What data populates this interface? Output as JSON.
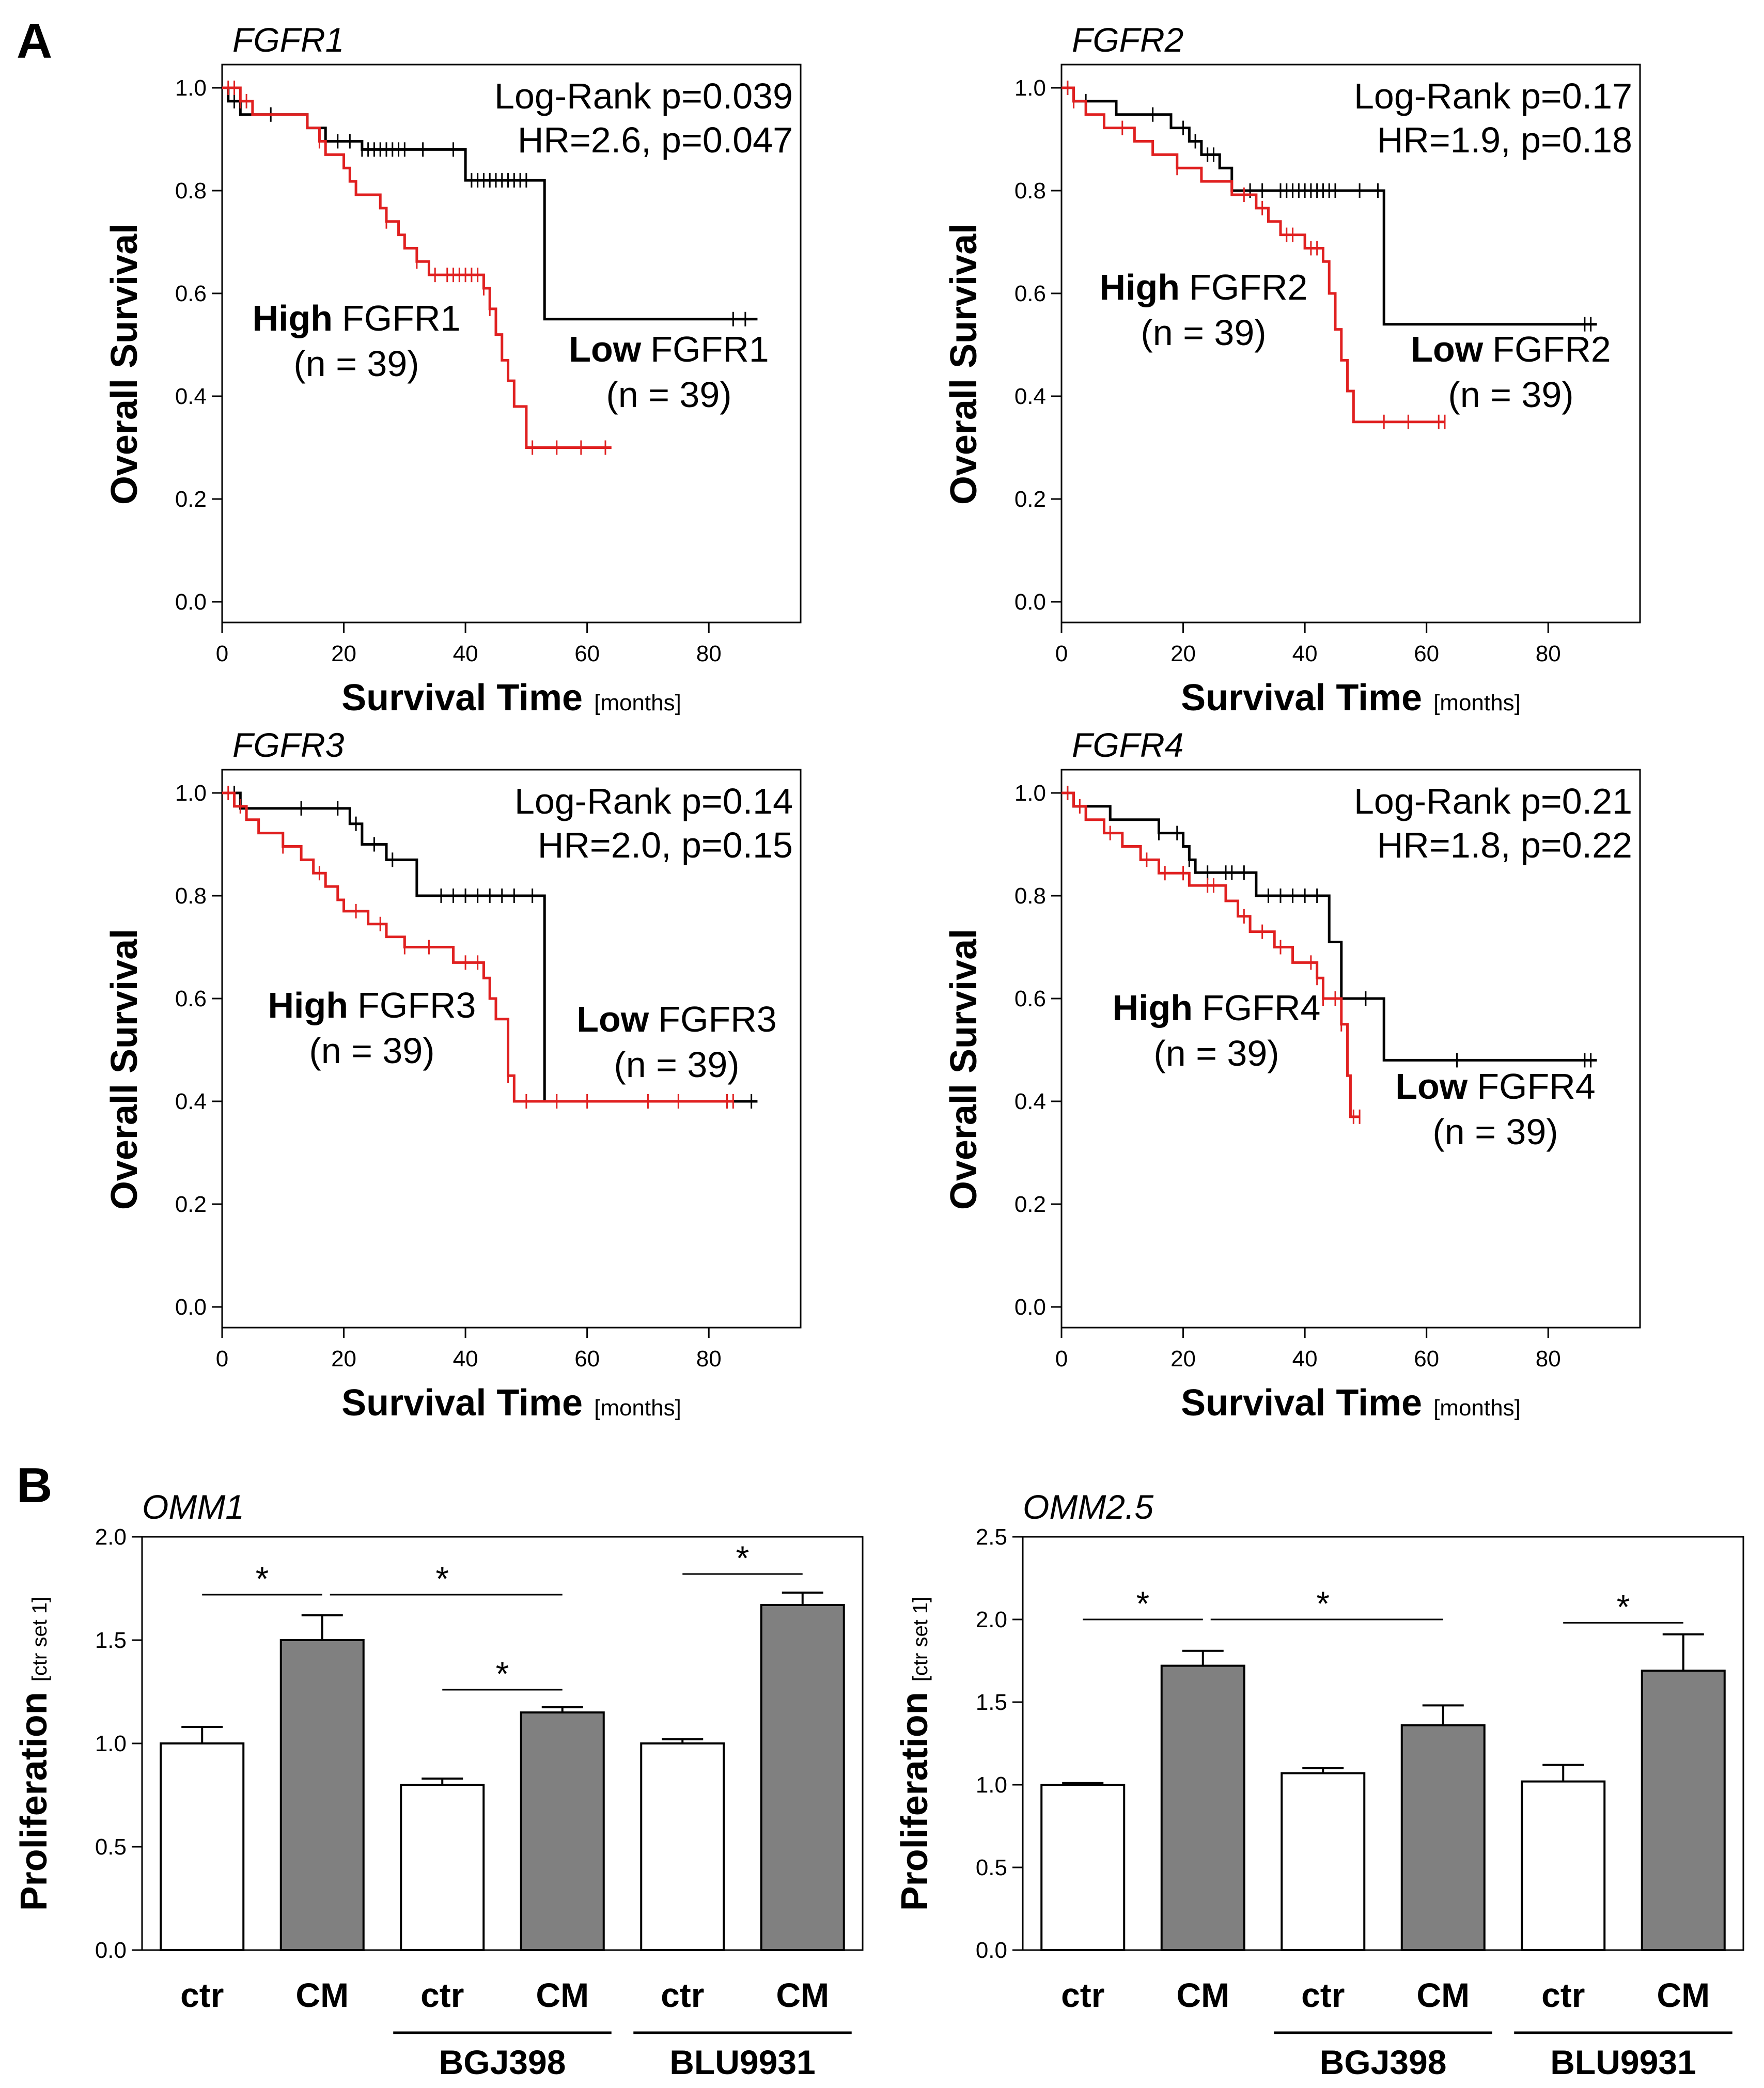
{
  "panel_labels": [
    "A",
    "B"
  ],
  "colors": {
    "high": "#e02020",
    "low": "#000000",
    "bar_ctr": "#ffffff",
    "bar_cm": "#808080"
  },
  "chart_data": [
    {
      "type": "line",
      "subtype": "kaplan-meier",
      "panel": "A",
      "title": "FGFR1",
      "xlabel": "Survival Time",
      "xunit": "[months]",
      "ylabel": "Overall Survival",
      "xlim": [
        0,
        90
      ],
      "ylim": [
        0,
        1.0
      ],
      "xticks": [
        "0",
        "20",
        "40",
        "60",
        "80"
      ],
      "yticks": [
        "0.0",
        "0.2",
        "0.4",
        "0.6",
        "0.8",
        "1.0"
      ],
      "annotations": [
        "Log-Rank p=0.039",
        "HR=2.6, p=0.047"
      ],
      "group_labels": {
        "high": {
          "bold": "High",
          "rest": "FGFR1",
          "n": "(n = 39)"
        },
        "low": {
          "bold": "Low",
          "rest": "FGFR1",
          "n": "(n = 39)"
        }
      },
      "series": [
        {
          "name": "High FGFR1",
          "color": "high",
          "steps": [
            [
              0,
              1.0
            ],
            [
              3,
              0.974
            ],
            [
              5,
              0.948
            ],
            [
              14,
              0.922
            ],
            [
              16,
              0.896
            ],
            [
              17,
              0.87
            ],
            [
              20,
              0.844
            ],
            [
              21,
              0.818
            ],
            [
              22,
              0.792
            ],
            [
              26,
              0.766
            ],
            [
              27,
              0.74
            ],
            [
              29,
              0.714
            ],
            [
              30,
              0.688
            ],
            [
              32,
              0.662
            ],
            [
              34,
              0.636
            ],
            [
              43,
              0.61
            ],
            [
              44,
              0.57
            ],
            [
              45,
              0.52
            ],
            [
              46,
              0.47
            ],
            [
              47,
              0.43
            ],
            [
              48,
              0.38
            ],
            [
              50,
              0.3
            ],
            [
              64,
              0.3
            ]
          ],
          "censors": [
            1,
            2,
            3,
            4,
            16,
            27,
            32,
            35,
            37,
            38,
            39,
            40,
            41,
            42,
            43,
            44,
            51,
            55,
            59,
            63
          ]
        },
        {
          "name": "Low FGFR1",
          "color": "low",
          "steps": [
            [
              0,
              1.0
            ],
            [
              1,
              0.974
            ],
            [
              3,
              0.948
            ],
            [
              14,
              0.922
            ],
            [
              17,
              0.896
            ],
            [
              23,
              0.88
            ],
            [
              40,
              0.82
            ],
            [
              53,
              0.55
            ],
            [
              88,
              0.55
            ]
          ],
          "censors": [
            2,
            8,
            19,
            21,
            23,
            24,
            25,
            26,
            27,
            28,
            29,
            30,
            33,
            38,
            41,
            42,
            43,
            44,
            45,
            46,
            47,
            48,
            49,
            50,
            84,
            86
          ]
        }
      ]
    },
    {
      "type": "line",
      "subtype": "kaplan-meier",
      "panel": "A",
      "title": "FGFR2",
      "xlabel": "Survival Time",
      "xunit": "[months]",
      "ylabel": "Overall Survival",
      "xlim": [
        0,
        90
      ],
      "ylim": [
        0,
        1.0
      ],
      "xticks": [
        "0",
        "20",
        "40",
        "60",
        "80"
      ],
      "yticks": [
        "0.0",
        "0.2",
        "0.4",
        "0.6",
        "0.8",
        "1.0"
      ],
      "annotations": [
        "Log-Rank p=0.17",
        "HR=1.9, p=0.18"
      ],
      "group_labels": {
        "high": {
          "bold": "High",
          "rest": "FGFR2",
          "n": "(n = 39)"
        },
        "low": {
          "bold": "Low",
          "rest": "FGFR2",
          "n": "(n = 39)"
        }
      },
      "series": [
        {
          "name": "High FGFR2",
          "color": "high",
          "steps": [
            [
              0,
              1.0
            ],
            [
              2,
              0.974
            ],
            [
              4,
              0.948
            ],
            [
              7,
              0.922
            ],
            [
              12,
              0.896
            ],
            [
              15,
              0.87
            ],
            [
              19,
              0.844
            ],
            [
              23,
              0.818
            ],
            [
              28,
              0.792
            ],
            [
              32,
              0.766
            ],
            [
              34,
              0.74
            ],
            [
              36,
              0.714
            ],
            [
              40,
              0.688
            ],
            [
              43,
              0.662
            ],
            [
              44,
              0.6
            ],
            [
              45,
              0.53
            ],
            [
              46,
              0.47
            ],
            [
              47,
              0.41
            ],
            [
              48,
              0.35
            ],
            [
              63,
              0.35
            ]
          ],
          "censors": [
            1,
            2,
            10,
            19,
            30,
            33,
            37,
            38,
            41,
            42,
            53,
            57,
            62,
            63
          ]
        },
        {
          "name": "Low FGFR2",
          "color": "low",
          "steps": [
            [
              0,
              1.0
            ],
            [
              2,
              0.974
            ],
            [
              9,
              0.948
            ],
            [
              18,
              0.922
            ],
            [
              21,
              0.896
            ],
            [
              23,
              0.87
            ],
            [
              26,
              0.844
            ],
            [
              28,
              0.8
            ],
            [
              53,
              0.54
            ],
            [
              88,
              0.54
            ]
          ],
          "censors": [
            1,
            4,
            15,
            20,
            22,
            24,
            25,
            31,
            33,
            36,
            37,
            38,
            39,
            40,
            41,
            42,
            43,
            44,
            45,
            49,
            52,
            86,
            87
          ]
        }
      ]
    },
    {
      "type": "line",
      "subtype": "kaplan-meier",
      "panel": "A",
      "title": "FGFR3",
      "xlabel": "Survival Time",
      "xunit": "[months]",
      "ylabel": "Overall Survival",
      "xlim": [
        0,
        90
      ],
      "ylim": [
        0,
        1.0
      ],
      "xticks": [
        "0",
        "20",
        "40",
        "60",
        "80"
      ],
      "yticks": [
        "0.0",
        "0.2",
        "0.4",
        "0.6",
        "0.8",
        "1.0"
      ],
      "annotations": [
        "Log-Rank p=0.14",
        "HR=2.0, p=0.15"
      ],
      "group_labels": {
        "high": {
          "bold": "High",
          "rest": "FGFR3",
          "n": "(n = 39)"
        },
        "low": {
          "bold": "Low",
          "rest": "FGFR3",
          "n": "(n = 39)"
        }
      },
      "series": [
        {
          "name": "High FGFR3",
          "color": "high",
          "steps": [
            [
              0,
              1.0
            ],
            [
              2,
              0.974
            ],
            [
              4,
              0.948
            ],
            [
              6,
              0.922
            ],
            [
              10,
              0.896
            ],
            [
              13,
              0.87
            ],
            [
              15,
              0.844
            ],
            [
              17,
              0.818
            ],
            [
              19,
              0.792
            ],
            [
              20,
              0.77
            ],
            [
              24,
              0.745
            ],
            [
              27,
              0.72
            ],
            [
              30,
              0.7
            ],
            [
              38,
              0.67
            ],
            [
              43,
              0.64
            ],
            [
              44,
              0.6
            ],
            [
              45,
              0.56
            ],
            [
              47,
              0.45
            ],
            [
              48,
              0.4
            ],
            [
              84,
              0.4
            ]
          ],
          "censors": [
            1,
            3,
            10,
            16,
            22,
            26,
            30,
            34,
            40,
            42,
            47,
            50,
            55,
            60,
            70,
            75,
            83,
            84
          ]
        },
        {
          "name": "Low FGFR3",
          "color": "low",
          "steps": [
            [
              0,
              1.0
            ],
            [
              3,
              0.97
            ],
            [
              21,
              0.94
            ],
            [
              23,
              0.9
            ],
            [
              27,
              0.87
            ],
            [
              32,
              0.8
            ],
            [
              53,
              0.4
            ],
            [
              88,
              0.4
            ]
          ],
          "censors": [
            2,
            13,
            19,
            22,
            25,
            28,
            36,
            38,
            40,
            42,
            44,
            46,
            48,
            51,
            83,
            87
          ]
        }
      ]
    },
    {
      "type": "line",
      "subtype": "kaplan-meier",
      "panel": "A",
      "title": "FGFR4",
      "xlabel": "Survival Time",
      "xunit": "[months]",
      "ylabel": "Overall Survival",
      "xlim": [
        0,
        90
      ],
      "ylim": [
        0,
        1.0
      ],
      "xticks": [
        "0",
        "20",
        "40",
        "60",
        "80"
      ],
      "yticks": [
        "0.0",
        "0.2",
        "0.4",
        "0.6",
        "0.8",
        "1.0"
      ],
      "annotations": [
        "Log-Rank p=0.21",
        "HR=1.8, p=0.22"
      ],
      "group_labels": {
        "high": {
          "bold": "High",
          "rest": "FGFR4",
          "n": "(n = 39)"
        },
        "low": {
          "bold": "Low",
          "rest": "FGFR4",
          "n": "(n = 39)"
        }
      },
      "series": [
        {
          "name": "High FGFR4",
          "color": "high",
          "steps": [
            [
              0,
              1.0
            ],
            [
              2,
              0.974
            ],
            [
              4,
              0.948
            ],
            [
              7,
              0.922
            ],
            [
              10,
              0.896
            ],
            [
              13,
              0.87
            ],
            [
              16,
              0.844
            ],
            [
              21,
              0.82
            ],
            [
              27,
              0.79
            ],
            [
              29,
              0.76
            ],
            [
              31,
              0.73
            ],
            [
              35,
              0.7
            ],
            [
              38,
              0.67
            ],
            [
              42,
              0.64
            ],
            [
              43,
              0.6
            ],
            [
              46,
              0.55
            ],
            [
              47,
              0.45
            ],
            [
              47.5,
              0.37
            ],
            [
              49,
              0.37
            ]
          ],
          "censors": [
            1,
            3,
            8,
            14,
            17,
            20,
            24,
            25,
            30,
            33,
            36,
            41,
            42,
            43,
            45,
            46,
            48,
            49
          ]
        },
        {
          "name": "Low FGFR4",
          "color": "low",
          "steps": [
            [
              0,
              1.0
            ],
            [
              2,
              0.974
            ],
            [
              8,
              0.948
            ],
            [
              16,
              0.922
            ],
            [
              20,
              0.896
            ],
            [
              21,
              0.87
            ],
            [
              22,
              0.845
            ],
            [
              32,
              0.8
            ],
            [
              44,
              0.71
            ],
            [
              46,
              0.6
            ],
            [
              53,
              0.48
            ],
            [
              88,
              0.48
            ]
          ],
          "censors": [
            1,
            16,
            19,
            21,
            24,
            27,
            28,
            30,
            34,
            36,
            38,
            40,
            42,
            50,
            65,
            86,
            87
          ]
        }
      ]
    },
    {
      "type": "bar",
      "panel": "B",
      "title": "OMM1",
      "ylabel": "Proliferation",
      "yunit": "[ctr set 1]",
      "ylim": [
        0,
        2.0
      ],
      "yticks": [
        "0.0",
        "0.5",
        "1.0",
        "1.5",
        "2.0"
      ],
      "categories": [
        "ctr",
        "CM",
        "ctr",
        "CM",
        "ctr",
        "CM"
      ],
      "values": [
        1.0,
        1.5,
        0.8,
        1.15,
        1.0,
        1.67
      ],
      "errors": [
        0.08,
        0.12,
        0.03,
        0.025,
        0.02,
        0.06
      ],
      "fills": [
        "bar_ctr",
        "bar_cm",
        "bar_ctr",
        "bar_cm",
        "bar_ctr",
        "bar_cm"
      ],
      "groups": [
        {
          "label": "BGJ398",
          "bars": [
            2,
            3
          ]
        },
        {
          "label": "BLU9931",
          "bars": [
            4,
            5
          ]
        }
      ],
      "significance": [
        {
          "from": 0,
          "to": 1,
          "y": 1.72,
          "label": "*"
        },
        {
          "from": 1,
          "to": 3,
          "y": 1.72,
          "label": "*"
        },
        {
          "from": 2,
          "to": 3,
          "y": 1.26,
          "label": "*"
        },
        {
          "from": 4,
          "to": 5,
          "y": 1.82,
          "label": "*"
        }
      ]
    },
    {
      "type": "bar",
      "panel": "B",
      "title": "OMM2.5",
      "ylabel": "Proliferation",
      "yunit": "[ctr set 1]",
      "ylim": [
        0,
        2.5
      ],
      "yticks": [
        "0.0",
        "0.5",
        "1.0",
        "1.5",
        "2.0",
        "2.5"
      ],
      "categories": [
        "ctr",
        "CM",
        "ctr",
        "CM",
        "ctr",
        "CM"
      ],
      "values": [
        1.0,
        1.72,
        1.07,
        1.36,
        1.02,
        1.69
      ],
      "errors": [
        0.01,
        0.09,
        0.03,
        0.12,
        0.1,
        0.22
      ],
      "fills": [
        "bar_ctr",
        "bar_cm",
        "bar_ctr",
        "bar_cm",
        "bar_ctr",
        "bar_cm"
      ],
      "groups": [
        {
          "label": "BGJ398",
          "bars": [
            2,
            3
          ]
        },
        {
          "label": "BLU9931",
          "bars": [
            4,
            5
          ]
        }
      ],
      "significance": [
        {
          "from": 0,
          "to": 1,
          "y": 2.0,
          "label": "*"
        },
        {
          "from": 1,
          "to": 3,
          "y": 2.0,
          "label": "*"
        },
        {
          "from": 4,
          "to": 5,
          "y": 1.98,
          "label": "*"
        }
      ]
    }
  ]
}
